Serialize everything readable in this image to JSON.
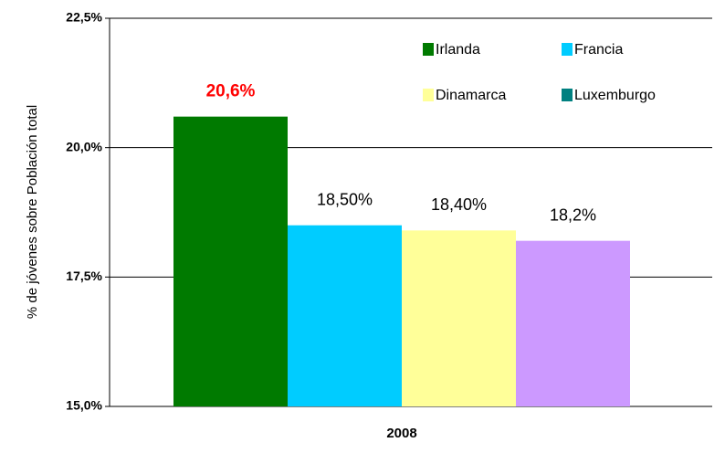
{
  "chart_data": {
    "type": "bar",
    "y_label": "% de jóvenes sobre Población total",
    "categories": [
      "2008"
    ],
    "series": [
      {
        "name": "Irlanda",
        "color": "#007a00",
        "values": [
          20.6
        ],
        "value_labels": [
          "20,6%"
        ],
        "label_color": "#ff0000"
      },
      {
        "name": "Francia",
        "color": "#00ccff",
        "values": [
          18.5
        ],
        "value_labels": [
          "18,50%"
        ]
      },
      {
        "name": "Dinamarca",
        "color": "#ffff99",
        "values": [
          18.4
        ],
        "value_labels": [
          "18,40%"
        ]
      },
      {
        "name": "Luxemburgo",
        "color": "#cc99ff",
        "legend_color": "#008080",
        "values": [
          18.2
        ],
        "value_labels": [
          "18,2%"
        ]
      }
    ],
    "ylim": [
      15,
      22.5
    ],
    "yticks": [
      {
        "value": 15,
        "label": "15,0%"
      },
      {
        "value": 17.5,
        "label": "17,5%"
      },
      {
        "value": 20,
        "label": "20,0%"
      },
      {
        "value": 22.5,
        "label": "22,5%"
      }
    ],
    "grid": true
  }
}
